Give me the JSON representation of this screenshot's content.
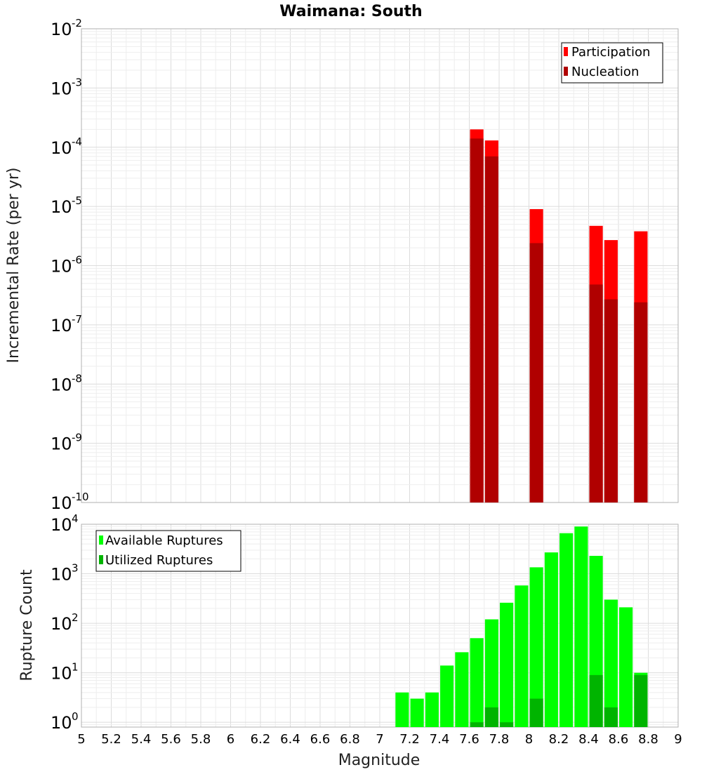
{
  "chart_data": [
    {
      "type": "bar",
      "title": "Waimana: South",
      "xlabel": "",
      "ylabel": "Incremental Rate (per yr)",
      "xlim": [
        5,
        9
      ],
      "ylim": [
        1e-10,
        0.01
      ],
      "yscale": "log",
      "grid": true,
      "legend_position": "top-right",
      "bar_width": 0.09,
      "overlay": true,
      "series": [
        {
          "name": "Participation",
          "color": "#ff0000",
          "x": [
            7.65,
            7.75,
            8.05,
            8.45,
            8.55,
            8.75
          ],
          "values": [
            0.0002,
            0.00013,
            9e-06,
            4.7e-06,
            2.7e-06,
            3.8e-06
          ]
        },
        {
          "name": "Nucleation",
          "color": "#b00000",
          "x": [
            7.65,
            7.75,
            8.05,
            8.45,
            8.55,
            8.75
          ],
          "values": [
            0.00014,
            7e-05,
            2.4e-06,
            4.8e-07,
            2.7e-07,
            2.4e-07
          ]
        }
      ]
    },
    {
      "type": "bar",
      "title": "",
      "xlabel": "Magnitude",
      "ylabel": "Rupture Count",
      "xlim": [
        5,
        9
      ],
      "ylim": [
        0.8,
        10000
      ],
      "yscale": "log",
      "grid": true,
      "legend_position": "top-left",
      "bar_width": 0.09,
      "overlay": true,
      "series": [
        {
          "name": "Available Ruptures",
          "color": "#00ff00",
          "x": [
            7.15,
            7.25,
            7.35,
            7.45,
            7.55,
            7.65,
            7.75,
            7.85,
            7.95,
            8.05,
            8.15,
            8.25,
            8.35,
            8.45,
            8.55,
            8.65,
            8.75
          ],
          "values": [
            4,
            3,
            4,
            14,
            26,
            50,
            120,
            260,
            580,
            1350,
            2700,
            6600,
            9000,
            2300,
            300,
            210,
            10
          ]
        },
        {
          "name": "Utilized Ruptures",
          "color": "#00b400",
          "x": [
            7.65,
            7.75,
            7.85,
            8.05,
            8.45,
            8.55,
            8.75
          ],
          "values": [
            1,
            2,
            1,
            3,
            9,
            2,
            9
          ]
        }
      ]
    }
  ],
  "x_ticks": [
    "5",
    "5.2",
    "5.4",
    "5.6",
    "5.8",
    "6",
    "6.2",
    "6.4",
    "6.6",
    "6.8",
    "7",
    "7.2",
    "7.4",
    "7.6",
    "7.8",
    "8",
    "8.2",
    "8.4",
    "8.6",
    "8.8",
    "9"
  ],
  "y_ticks_top": [
    {
      "base": "10",
      "exp": "-10"
    },
    {
      "base": "10",
      "exp": "-9"
    },
    {
      "base": "10",
      "exp": "-8"
    },
    {
      "base": "10",
      "exp": "-7"
    },
    {
      "base": "10",
      "exp": "-6"
    },
    {
      "base": "10",
      "exp": "-5"
    },
    {
      "base": "10",
      "exp": "-4"
    },
    {
      "base": "10",
      "exp": "-3"
    },
    {
      "base": "10",
      "exp": "-2"
    }
  ],
  "y_ticks_bottom": [
    {
      "base": "10",
      "exp": "0"
    },
    {
      "base": "10",
      "exp": "1"
    },
    {
      "base": "10",
      "exp": "2"
    },
    {
      "base": "10",
      "exp": "3"
    },
    {
      "base": "10",
      "exp": "4"
    }
  ]
}
